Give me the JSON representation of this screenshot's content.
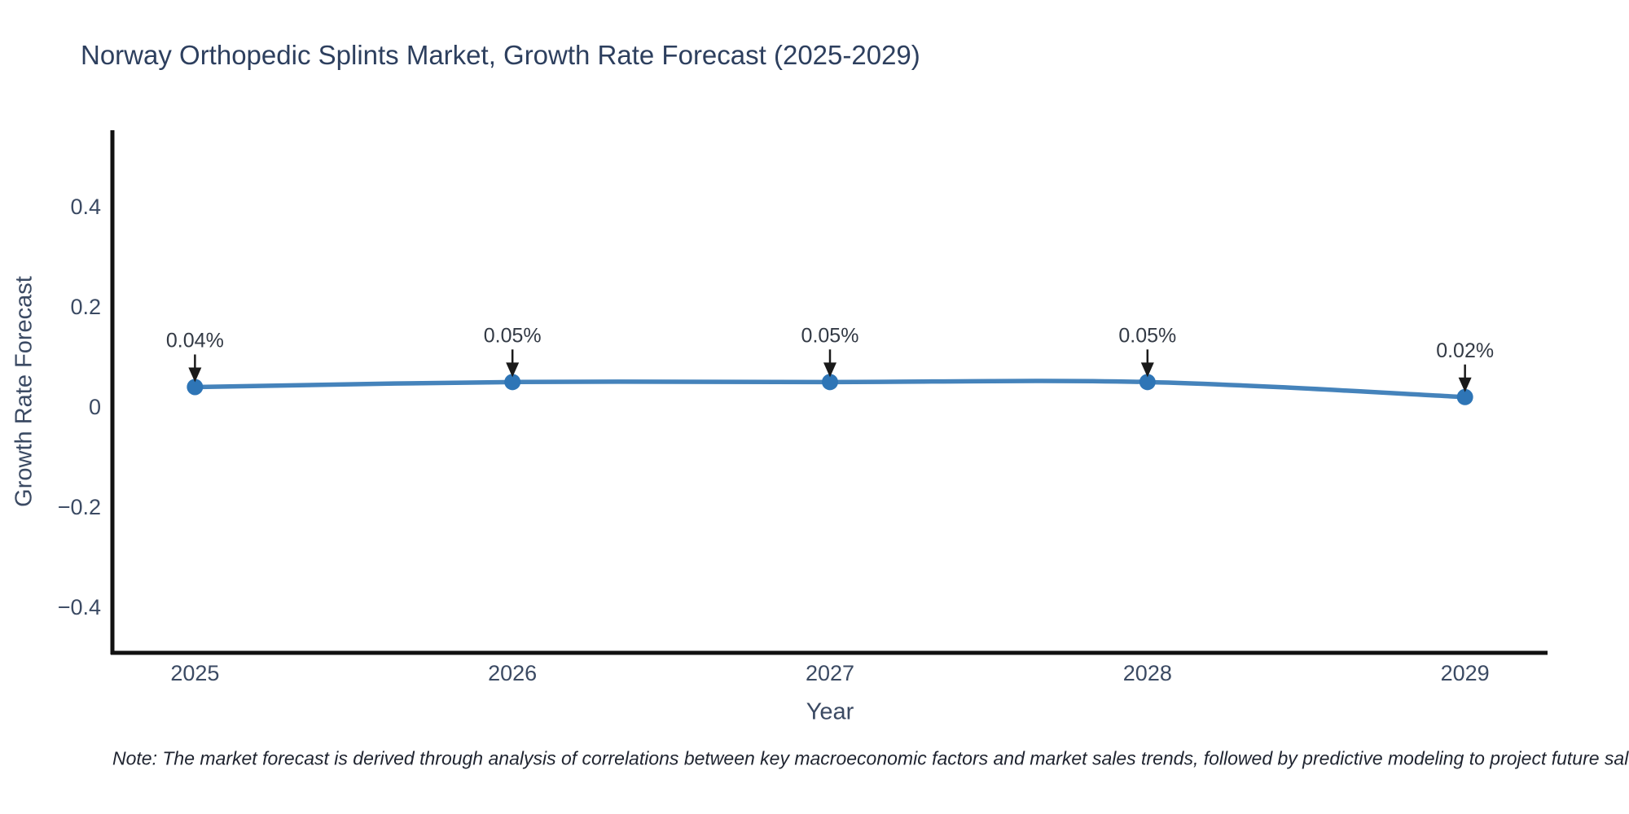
{
  "chart_data": {
    "type": "line",
    "title": "Norway Orthopedic Splints Market, Growth Rate Forecast (2025-2029)",
    "xlabel": "Year",
    "ylabel": "Growth Rate Forecast",
    "x": [
      2025,
      2026,
      2027,
      2028,
      2029
    ],
    "series": [
      {
        "name": "Growth Rate Forecast",
        "values": [
          0.04,
          0.05,
          0.05,
          0.05,
          0.02
        ],
        "point_labels": [
          "0.04%",
          "0.05%",
          "0.05%",
          "0.05%",
          "0.02%"
        ]
      }
    ],
    "unit": "%",
    "xtick_labels": [
      "2025",
      "2026",
      "2027",
      "2028",
      "2029"
    ],
    "yticks": [
      -0.4,
      -0.2,
      0,
      0.2,
      0.4
    ],
    "ytick_labels": [
      "−0.4",
      "−0.2",
      "0",
      "0.2",
      "0.4"
    ],
    "ylim": [
      -0.491,
      0.553
    ],
    "xlim": [
      2024.74,
      2029.26
    ],
    "grid": false,
    "legend": "none",
    "line_shape": "spline",
    "note": "Note: The market forecast is derived through analysis of correlations between key macroeconomic factors and market sales trends, followed by predictive modeling to project future sales.",
    "colors": {
      "line": "#4583bb",
      "marker": "#2e75b6",
      "axis": "#111111",
      "title_text": "#2d3f5e",
      "tick_text": "#3b4a63",
      "annotation_text": "#333a45",
      "arrow": "#1a1a1a",
      "background": "#ffffff"
    }
  }
}
